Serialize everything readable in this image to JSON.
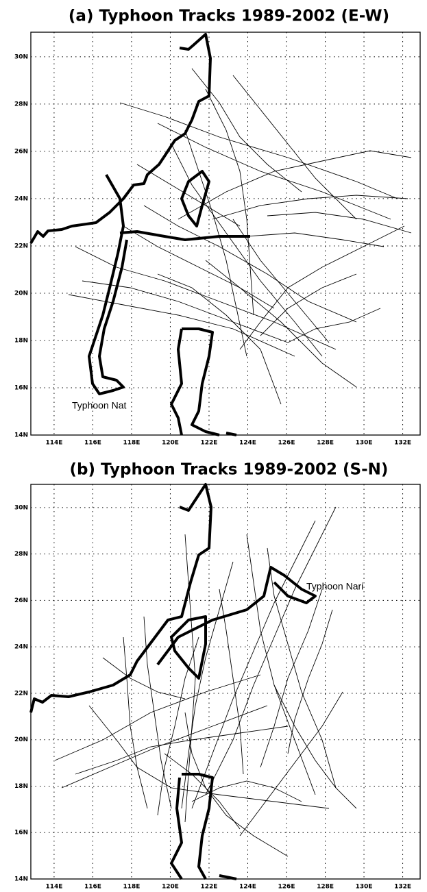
{
  "panels": [
    {
      "title": "(a) Typhoon Tracks 1989-2002 (E-W)",
      "annotation": "Typhoon Nat",
      "xlim": [
        112.8,
        132.9
      ],
      "ylim": [
        14,
        31.04
      ],
      "xticks": [
        {
          "value": 114,
          "label": "114E"
        },
        {
          "value": 116,
          "label": "116E"
        },
        {
          "value": 118,
          "label": "118E"
        },
        {
          "value": 120,
          "label": "120E"
        },
        {
          "value": 122,
          "label": "122E"
        },
        {
          "value": 124,
          "label": "124E"
        },
        {
          "value": 126,
          "label": "126E"
        },
        {
          "value": 128,
          "label": "128E"
        },
        {
          "value": 130,
          "label": "130E"
        },
        {
          "value": 132,
          "label": "132E"
        }
      ],
      "yticks": [
        {
          "value": 14,
          "label": "14N"
        },
        {
          "value": 16,
          "label": "16N"
        },
        {
          "value": 18,
          "label": "18N"
        },
        {
          "value": 20,
          "label": "20N"
        },
        {
          "value": 22,
          "label": "22N"
        },
        {
          "value": 24,
          "label": "24N"
        },
        {
          "value": 26,
          "label": "26N"
        },
        {
          "value": 28,
          "label": "28N"
        },
        {
          "value": 30,
          "label": "30N"
        }
      ]
    },
    {
      "title": "(b) Typhoon Tracks 1989-2002 (S-N)",
      "annotation": "Typhoon Nari",
      "xlim": [
        112.8,
        132.9
      ],
      "ylim": [
        14,
        31.0
      ],
      "xticks": [
        {
          "value": 114,
          "label": "114E"
        },
        {
          "value": 116,
          "label": "116E"
        },
        {
          "value": 118,
          "label": "118E"
        },
        {
          "value": 120,
          "label": "120E"
        },
        {
          "value": 122,
          "label": "122E"
        },
        {
          "value": 124,
          "label": "124E"
        },
        {
          "value": 126,
          "label": "126E"
        },
        {
          "value": 128,
          "label": "128E"
        },
        {
          "value": 130,
          "label": "130E"
        },
        {
          "value": 132,
          "label": "132E"
        }
      ],
      "yticks": [
        {
          "value": 14,
          "label": "14N"
        },
        {
          "value": 16,
          "label": "16N"
        },
        {
          "value": 18,
          "label": "18N"
        },
        {
          "value": 20,
          "label": "20N"
        },
        {
          "value": 22,
          "label": "22N"
        },
        {
          "value": 24,
          "label": "24N"
        },
        {
          "value": 26,
          "label": "26N"
        },
        {
          "value": 28,
          "label": "28N"
        },
        {
          "value": 30,
          "label": "30N"
        }
      ]
    }
  ]
}
